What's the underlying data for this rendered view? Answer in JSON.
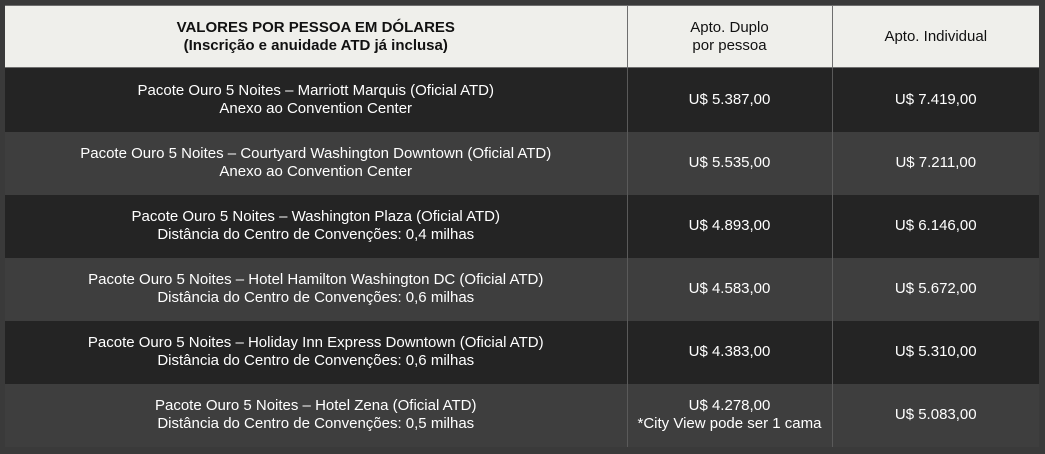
{
  "header": {
    "col1_line1": "VALORES POR PESSOA EM DÓLARES",
    "col1_line2": "(Inscrição e anuidade ATD já inclusa)",
    "col2_line1": "Apto. Duplo",
    "col2_line2": "por pessoa",
    "col3": "Apto. Individual"
  },
  "rows": [
    {
      "name": "Pacote Ouro 5 Noites – Marriott Marquis (Oficial ATD)",
      "detail": "Anexo ao Convention Center",
      "double": "U$ 5.387,00",
      "double_note": "",
      "single": "U$ 7.419,00"
    },
    {
      "name": "Pacote Ouro 5 Noites – Courtyard Washington Downtown (Oficial ATD)",
      "detail": "Anexo ao Convention Center",
      "double": "U$ 5.535,00",
      "double_note": "",
      "single": "U$ 7.211,00"
    },
    {
      "name": "Pacote Ouro 5 Noites – Washington Plaza (Oficial ATD)",
      "detail": "Distância do Centro de Convenções: 0,4 milhas",
      "double": "U$ 4.893,00",
      "double_note": "",
      "single": "U$ 6.146,00"
    },
    {
      "name": "Pacote Ouro 5 Noites – Hotel Hamilton Washington DC (Oficial ATD)",
      "detail": "Distância do Centro de Convenções: 0,6 milhas",
      "double": "U$ 4.583,00",
      "double_note": "",
      "single": "U$ 5.672,00"
    },
    {
      "name": "Pacote Ouro 5 Noites – Holiday Inn Express Downtown (Oficial ATD)",
      "detail": "Distância do Centro de Convenções: 0,6 milhas",
      "double": "U$ 4.383,00",
      "double_note": "",
      "single": "U$ 5.310,00"
    },
    {
      "name": "Pacote Ouro 5 Noites – Hotel Zena (Oficial ATD)",
      "detail": "Distância do Centro de Convenções: 0,5 milhas",
      "double": "U$ 4.278,00",
      "double_note": "*City View pode ser 1 cama",
      "single": "U$ 5.083,00"
    }
  ]
}
